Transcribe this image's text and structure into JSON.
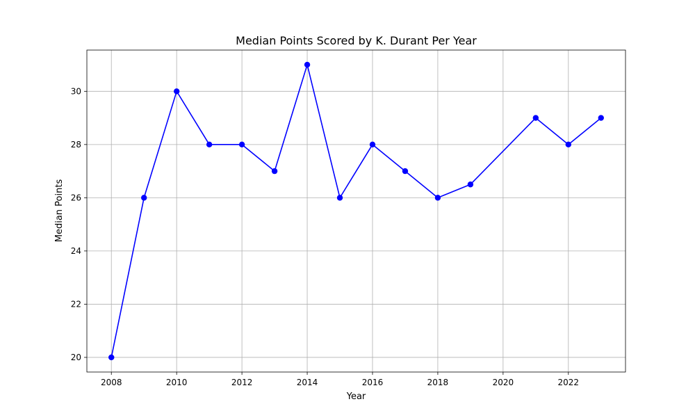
{
  "chart_data": {
    "type": "line",
    "title": "Median Points Scored by K. Durant Per Year",
    "xlabel": "Year",
    "ylabel": "Median Points",
    "x": [
      2008,
      2009,
      2010,
      2011,
      2012,
      2013,
      2014,
      2015,
      2016,
      2017,
      2018,
      2019,
      2021,
      2022,
      2023
    ],
    "series": [
      {
        "values": [
          20,
          26,
          30,
          28,
          28,
          27,
          31,
          26,
          28,
          27,
          26,
          26.5,
          29,
          28,
          29
        ],
        "color": "#0000ff",
        "marker": "circle"
      }
    ],
    "xlim": [
      2007.25,
      2023.75
    ],
    "ylim": [
      19.45,
      31.55
    ],
    "xticks": [
      "2008",
      "2010",
      "2012",
      "2014",
      "2016",
      "2018",
      "2020",
      "2022"
    ],
    "yticks": [
      "20",
      "22",
      "24",
      "26",
      "28",
      "30"
    ],
    "grid": true,
    "grid_color": "#b0b0b0"
  }
}
